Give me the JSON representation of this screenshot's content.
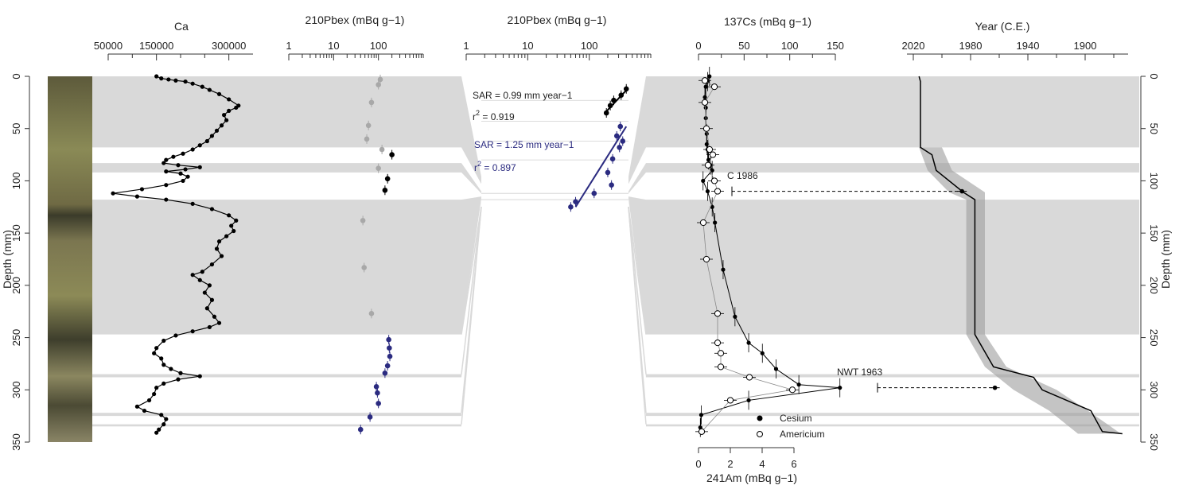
{
  "chart_data": {
    "type": "scatter",
    "depth_axis": {
      "label": "Depth (mm)",
      "range": [
        0,
        350
      ],
      "ticks": [
        0,
        50,
        100,
        150,
        200,
        250,
        300,
        350
      ]
    },
    "gray_bands_depth": [
      [
        0,
        68
      ],
      [
        83,
        92
      ],
      [
        118,
        247
      ],
      [
        285,
        288
      ],
      [
        322,
        325
      ],
      [
        333,
        335
      ]
    ],
    "panel_ca": {
      "title": "Ca",
      "ticks": [
        {
          "v": 50000,
          "label": "50000"
        },
        {
          "v": 150000,
          "label": "150000"
        },
        {
          "v": 300000,
          "label": "300000"
        }
      ],
      "xlim": [
        50000,
        350000
      ],
      "points": [
        [
          150000,
          0
        ],
        [
          160000,
          2
        ],
        [
          175000,
          3
        ],
        [
          190000,
          4
        ],
        [
          210000,
          5
        ],
        [
          225000,
          7
        ],
        [
          245000,
          10
        ],
        [
          260000,
          13
        ],
        [
          280000,
          17
        ],
        [
          300000,
          22
        ],
        [
          320000,
          28
        ],
        [
          315000,
          30
        ],
        [
          300000,
          33
        ],
        [
          290000,
          37
        ],
        [
          295000,
          42
        ],
        [
          285000,
          47
        ],
        [
          275000,
          52
        ],
        [
          265000,
          57
        ],
        [
          255000,
          62
        ],
        [
          240000,
          66
        ],
        [
          225000,
          70
        ],
        [
          205000,
          74
        ],
        [
          185000,
          77
        ],
        [
          170000,
          80
        ],
        [
          165000,
          83
        ],
        [
          195000,
          85
        ],
        [
          240000,
          87
        ],
        [
          210000,
          89
        ],
        [
          170000,
          91
        ],
        [
          200000,
          93
        ],
        [
          215000,
          96
        ],
        [
          205000,
          100
        ],
        [
          170000,
          104
        ],
        [
          120000,
          108
        ],
        [
          60000,
          112
        ],
        [
          110000,
          115
        ],
        [
          170000,
          118
        ],
        [
          225000,
          122
        ],
        [
          265000,
          127
        ],
        [
          300000,
          133
        ],
        [
          315000,
          138
        ],
        [
          305000,
          143
        ],
        [
          310000,
          148
        ],
        [
          295000,
          153
        ],
        [
          280000,
          158
        ],
        [
          275000,
          165
        ],
        [
          285000,
          172
        ],
        [
          265000,
          180
        ],
        [
          245000,
          187
        ],
        [
          225000,
          190
        ],
        [
          240000,
          195
        ],
        [
          260000,
          200
        ],
        [
          250000,
          207
        ],
        [
          265000,
          214
        ],
        [
          255000,
          222
        ],
        [
          270000,
          230
        ],
        [
          280000,
          236
        ],
        [
          260000,
          240
        ],
        [
          225000,
          244
        ],
        [
          190000,
          248
        ],
        [
          165000,
          253
        ],
        [
          150000,
          260
        ],
        [
          145000,
          265
        ],
        [
          160000,
          270
        ],
        [
          165000,
          276
        ],
        [
          180000,
          280
        ],
        [
          200000,
          284
        ],
        [
          240000,
          287
        ],
        [
          195000,
          290
        ],
        [
          165000,
          294
        ],
        [
          150000,
          298
        ],
        [
          145000,
          304
        ],
        [
          135000,
          310
        ],
        [
          110000,
          316
        ],
        [
          125000,
          320
        ],
        [
          160000,
          324
        ],
        [
          170000,
          328
        ],
        [
          165000,
          333
        ],
        [
          155000,
          338
        ],
        [
          150000,
          341
        ]
      ]
    },
    "panel_pb1": {
      "title": "210Pbex (mBq g−1)",
      "ticks": [
        {
          "v": 1,
          "label": "1"
        },
        {
          "v": 10,
          "label": "10"
        },
        {
          "v": 100,
          "label": "100"
        }
      ],
      "xlim": [
        1,
        1000
      ],
      "xscale": "log",
      "gray_points": [
        [
          110,
          3
        ],
        [
          100,
          8
        ],
        [
          70,
          25
        ],
        [
          60,
          47
        ],
        [
          55,
          60
        ],
        [
          120,
          70
        ],
        [
          100,
          88
        ],
        [
          45,
          138
        ],
        [
          48,
          183
        ],
        [
          70,
          227
        ]
      ],
      "black_points": [
        [
          200,
          75
        ],
        [
          160,
          98
        ],
        [
          140,
          109
        ]
      ],
      "blue_points": [
        [
          170,
          252
        ],
        [
          175,
          260
        ],
        [
          180,
          268
        ],
        [
          160,
          277
        ],
        [
          140,
          284
        ],
        [
          90,
          297
        ],
        [
          95,
          303
        ],
        [
          100,
          313
        ],
        [
          65,
          326
        ],
        [
          40,
          338
        ]
      ]
    },
    "panel_pb2": {
      "title": "210Pbex (mBq g−1)",
      "ticks": [
        {
          "v": 1,
          "label": "1"
        },
        {
          "v": 10,
          "label": "10"
        },
        {
          "v": 100,
          "label": "100"
        }
      ],
      "xlim": [
        1,
        1000
      ],
      "xscale": "log",
      "black_points": [
        [
          400,
          12
        ],
        [
          330,
          18
        ],
        [
          250,
          23
        ],
        [
          220,
          28
        ],
        [
          190,
          35
        ]
      ],
      "blue_points": [
        [
          320,
          48
        ],
        [
          280,
          57
        ],
        [
          350,
          62
        ],
        [
          310,
          68
        ],
        [
          240,
          79
        ],
        [
          200,
          92
        ],
        [
          230,
          104
        ],
        [
          120,
          112
        ],
        [
          60,
          120
        ],
        [
          50,
          125
        ]
      ],
      "black_fit": {
        "label": "SAR = 0.99 mm year−1",
        "r2": "0.919",
        "from": [
          420,
          12
        ],
        "to": [
          180,
          35
        ]
      },
      "blue_fit": {
        "label": "SAR = 1.25 mm year−1",
        "r2": "0.897",
        "from": [
          400,
          48
        ],
        "to": [
          60,
          125
        ]
      }
    },
    "panel_cs": {
      "title": "137Cs (mBq g−1)",
      "xlabel": "241Am (mBq g−1)",
      "ticks_top": [
        {
          "v": 0,
          "label": "0"
        },
        {
          "v": 50,
          "label": "50"
        },
        {
          "v": 100,
          "label": "100"
        },
        {
          "v": 150,
          "label": "150"
        }
      ],
      "ticks_bottom": [
        {
          "v": 0,
          "label": "0"
        },
        {
          "v": 2,
          "label": "2"
        },
        {
          "v": 4,
          "label": "4"
        },
        {
          "v": 6,
          "label": "6"
        }
      ],
      "cesium": [
        [
          12,
          0
        ],
        [
          10,
          5
        ],
        [
          8,
          10
        ],
        [
          7,
          20
        ],
        [
          8,
          30
        ],
        [
          8,
          40
        ],
        [
          9,
          55
        ],
        [
          9,
          65
        ],
        [
          10,
          70
        ],
        [
          11,
          80
        ],
        [
          13,
          85
        ],
        [
          15,
          90
        ],
        [
          5,
          100
        ],
        [
          10,
          110
        ],
        [
          15,
          125
        ],
        [
          18,
          140
        ],
        [
          27,
          185
        ],
        [
          40,
          230
        ],
        [
          55,
          255
        ],
        [
          70,
          265
        ],
        [
          85,
          280
        ],
        [
          110,
          295
        ],
        [
          155,
          298
        ],
        [
          55,
          310
        ],
        [
          3,
          324
        ],
        [
          2,
          336
        ]
      ],
      "cesium_err": [
        [
          40,
          0
        ],
        [
          8,
          10
        ],
        [
          8,
          20
        ],
        [
          8,
          30
        ],
        [
          8,
          40
        ],
        [
          8,
          50
        ],
        [
          10,
          60
        ],
        [
          10,
          70
        ],
        [
          12,
          80
        ],
        [
          18,
          90
        ],
        [
          8,
          100
        ],
        [
          10,
          110
        ],
        [
          14,
          120
        ],
        [
          18,
          130
        ],
        [
          22,
          140
        ],
        [
          22,
          150
        ],
        [
          25,
          160
        ],
        [
          28,
          170
        ],
        [
          30,
          180
        ],
        [
          35,
          190
        ]
      ],
      "americium": [
        [
          0.4,
          4
        ],
        [
          1.0,
          10
        ],
        [
          0.4,
          25
        ],
        [
          0.5,
          50
        ],
        [
          0.7,
          70
        ],
        [
          0.9,
          75
        ],
        [
          0.6,
          85
        ],
        [
          1.0,
          100
        ],
        [
          1.2,
          110
        ],
        [
          0.3,
          140
        ],
        [
          0.5,
          175
        ],
        [
          1.2,
          227
        ],
        [
          1.2,
          255
        ],
        [
          1.4,
          265
        ],
        [
          1.4,
          278
        ],
        [
          3.2,
          288
        ],
        [
          5.9,
          300
        ],
        [
          2.0,
          310
        ],
        [
          0.2,
          340
        ]
      ],
      "annotations": [
        {
          "label": "C 1986",
          "depth": 100
        },
        {
          "label": "NWT 1963",
          "depth": 285
        }
      ],
      "legend": [
        "Cesium",
        "Americium"
      ],
      "legend_position": "bottom-right"
    },
    "panel_year": {
      "title": "Year (C.E.)",
      "ticks": [
        {
          "v": 2020,
          "label": "2020"
        },
        {
          "v": 1980,
          "label": "1980"
        },
        {
          "v": 1940,
          "label": "1940"
        },
        {
          "v": 1900,
          "label": "1900"
        }
      ],
      "xlim": [
        2020,
        1870
      ],
      "xreversed": true,
      "line": [
        [
          2016,
          0
        ],
        [
          2015,
          5
        ],
        [
          2015,
          68
        ],
        [
          2007,
          75
        ],
        [
          2004,
          90
        ],
        [
          1985,
          111
        ],
        [
          1977,
          118
        ],
        [
          1977,
          247
        ],
        [
          1964,
          278
        ],
        [
          1936,
          288
        ],
        [
          1930,
          300
        ],
        [
          1896,
          320
        ],
        [
          1888,
          340
        ],
        [
          1874,
          342
        ]
      ],
      "band_upper": [
        [
          2000,
          68
        ],
        [
          1993,
          90
        ],
        [
          1970,
          111
        ],
        [
          1970,
          118
        ],
        [
          1970,
          247
        ],
        [
          1955,
          278
        ],
        [
          1920,
          300
        ],
        [
          1898,
          320
        ],
        [
          1875,
          342
        ]
      ],
      "band_lower": [
        [
          2016,
          68
        ],
        [
          2010,
          90
        ],
        [
          1995,
          111
        ],
        [
          1983,
          118
        ],
        [
          1983,
          247
        ],
        [
          1970,
          278
        ],
        [
          1950,
          300
        ],
        [
          1925,
          320
        ],
        [
          1905,
          342
        ]
      ],
      "dated_points": [
        {
          "year": 1986,
          "depth": 110
        },
        {
          "year": 1963,
          "depth": 298
        }
      ]
    }
  }
}
